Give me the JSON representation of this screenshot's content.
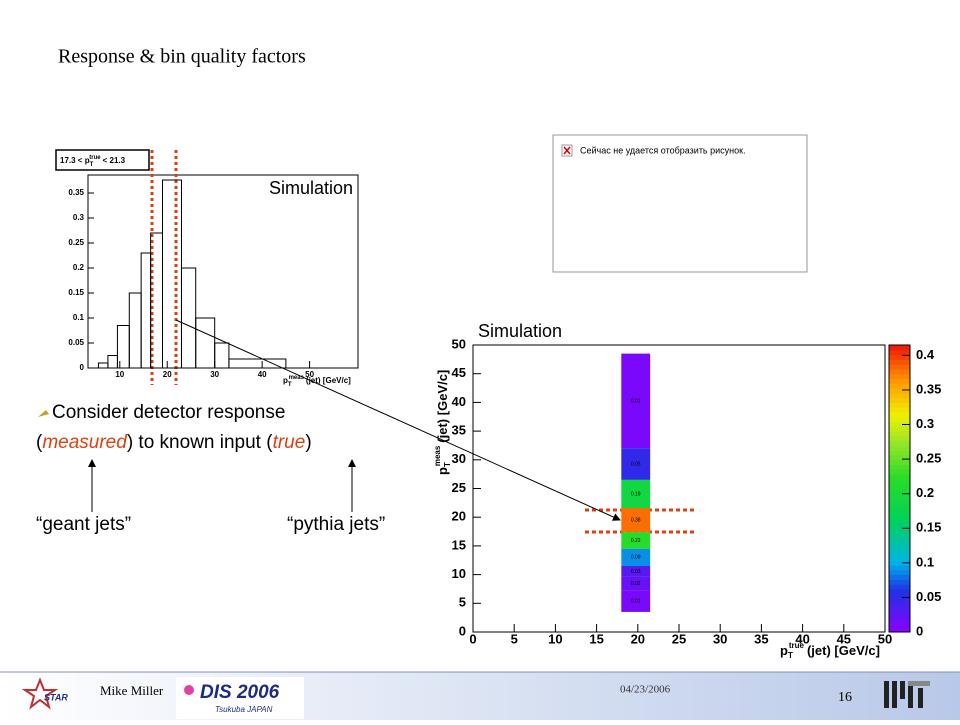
{
  "header": {
    "title": "Response & bin quality factors"
  },
  "left_plot": {
    "label": "Simulation",
    "legend": {
      "pre": "17.3 < p",
      "sub": "T",
      "sup": "true",
      "post": "< 21.3"
    },
    "xlim": [
      3.3,
      60.2
    ],
    "ylim": [
      0,
      0.386
    ],
    "xticks": [
      10,
      20,
      30,
      40,
      50
    ],
    "yticks": [
      0,
      0.05,
      0.1,
      0.15,
      0.2,
      0.25,
      0.3,
      0.35
    ],
    "xlabel": {
      "sym": "p",
      "sub": "T",
      "sup": "meas",
      "rest": "(jet) [GeV/c]"
    },
    "bins": [
      5.5,
      7.5,
      9.5,
      12,
      14.5,
      16.5,
      19,
      23,
      26,
      30,
      33,
      45
    ],
    "counts": [
      0.01,
      0.025,
      0.085,
      0.15,
      0.23,
      0.27,
      0.376,
      0.2,
      0.1,
      0.05,
      0.018
    ]
  },
  "right_plot": {
    "label": "Simulation",
    "xlim": [
      0,
      50
    ],
    "ylim": [
      0,
      50
    ],
    "zlim": [
      0,
      0.415
    ],
    "xticks": [
      0,
      5,
      10,
      15,
      20,
      25,
      30,
      35,
      40,
      45,
      50
    ],
    "yticks": [
      0,
      5,
      10,
      15,
      20,
      25,
      30,
      35,
      40,
      45,
      50
    ],
    "zticks": [
      0,
      0.05,
      0.1,
      0.15,
      0.2,
      0.25,
      0.3,
      0.35,
      0.4
    ],
    "xlabel": {
      "sym": "p",
      "sub": "T",
      "sup": "true",
      "rest": "(jet) [GeV/c]"
    },
    "ylabel": {
      "sym": "p",
      "sub": "T",
      "sup": "meas",
      "rest": "(jet) [GeV/c]"
    },
    "cells": [
      {
        "x": [
          18,
          21.5
        ],
        "y": [
          32,
          48.5
        ],
        "value": 0.01
      },
      {
        "x": [
          18,
          21.5
        ],
        "y": [
          26.5,
          32
        ],
        "value": 0.05
      },
      {
        "x": [
          18,
          21.5
        ],
        "y": [
          21.6,
          26.5
        ],
        "value": 0.19
      },
      {
        "x": [
          18,
          21.5
        ],
        "y": [
          17.4,
          21.6
        ],
        "value": 0.38
      },
      {
        "x": [
          18,
          21.5
        ],
        "y": [
          14.5,
          17.4
        ],
        "value": 0.22
      },
      {
        "x": [
          18,
          21.5
        ],
        "y": [
          11.5,
          14.5
        ],
        "value": 0.09
      },
      {
        "x": [
          18,
          21.5
        ],
        "y": [
          9.6,
          11.5
        ],
        "value": 0.03
      },
      {
        "x": [
          18,
          21.5
        ],
        "y": [
          7.3,
          9.6
        ],
        "value": 0.02
      },
      {
        "x": [
          18,
          21.5
        ],
        "y": [
          3.5,
          7.3
        ],
        "value": 0.01
      }
    ]
  },
  "broken_image": {
    "text": "Сейчас не удается отобразить рисунок."
  },
  "body": {
    "bullet": "Consider detector response",
    "line2": [
      "(",
      "measured",
      ") to known input (",
      "true",
      ")"
    ],
    "arrow_left": "“geant jets”",
    "arrow_right": "“pythia jets”"
  },
  "footer": {
    "author": "Mike Miller",
    "date": "04/23/2006",
    "page": "16",
    "logo_text": "DIS 2006",
    "logo_sub": "Tsukuba JAPAN",
    "star": "STAR"
  }
}
